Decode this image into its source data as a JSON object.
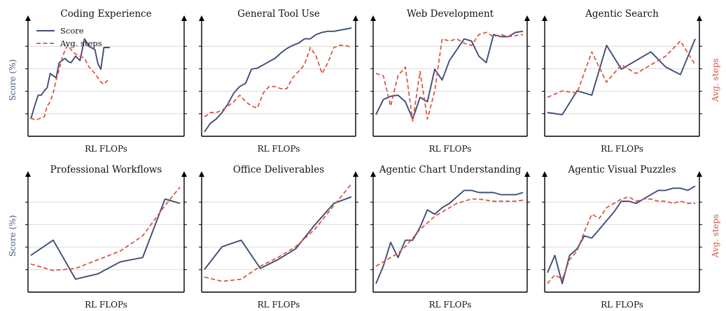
{
  "colors": {
    "score": "#3f4d77",
    "steps": "#d9503f",
    "grid": "#d9d9d9",
    "axis": "#000000"
  },
  "legend": {
    "items": [
      "Score",
      "Avg. steps"
    ],
    "position": "top-left"
  },
  "chart_data": [
    {
      "type": "line",
      "title": "Coding Experience",
      "xlabel": "RL FLOPs",
      "ylabel_left": "Score (%)",
      "ylabel_right": "",
      "ylim": [
        0,
        100
      ],
      "y2lim": [
        0,
        100
      ],
      "grid": "horizontal",
      "series": [
        {
          "name": "Score",
          "style": "solid",
          "axis": "left",
          "x": [
            0,
            0.03,
            0.05,
            0.07,
            0.09,
            0.11,
            0.13,
            0.15,
            0.17,
            0.19,
            0.21,
            0.23,
            0.25,
            0.27,
            0.3,
            0.33,
            0.36,
            0.39,
            0.43,
            0.45,
            0.47,
            0.49,
            0.51,
            0.53
          ],
          "values": [
            14,
            28,
            36,
            36,
            40,
            43,
            56,
            54,
            52,
            66,
            68,
            70,
            67,
            66,
            72,
            68,
            88,
            81,
            78,
            65,
            60,
            80,
            80,
            80
          ]
        },
        {
          "name": "Avg. steps",
          "style": "dashed",
          "axis": "right",
          "x": [
            0,
            0.03,
            0.05,
            0.07,
            0.09,
            0.11,
            0.13,
            0.15,
            0.17,
            0.19,
            0.21,
            0.23,
            0.25,
            0.27,
            0.3,
            0.33,
            0.36,
            0.39,
            0.43,
            0.45,
            0.47,
            0.49,
            0.51,
            0.53
          ],
          "values": [
            15,
            13,
            14,
            15,
            16,
            26,
            30,
            38,
            50,
            60,
            70,
            78,
            82,
            78,
            74,
            72,
            70,
            62,
            56,
            52,
            48,
            46,
            49,
            50
          ]
        }
      ]
    },
    {
      "type": "line",
      "title": "General Tool Use",
      "xlabel": "RL FLOPs",
      "ylabel_left": "",
      "ylabel_right": "",
      "ylim": [
        0,
        100
      ],
      "y2lim": [
        0,
        100
      ],
      "grid": "horizontal",
      "series": [
        {
          "name": "Score",
          "style": "solid",
          "axis": "left",
          "x": [
            0,
            0.04,
            0.08,
            0.12,
            0.16,
            0.2,
            0.24,
            0.28,
            0.32,
            0.36,
            0.4,
            0.44,
            0.48,
            0.52,
            0.56,
            0.6,
            0.64,
            0.68,
            0.72,
            0.76,
            0.8,
            0.84,
            0.88,
            0.92,
            0.96,
            1
          ],
          "values": [
            2,
            10,
            14,
            20,
            28,
            38,
            44,
            47,
            60,
            61,
            64,
            67,
            70,
            75,
            79,
            82,
            84,
            88,
            88,
            92,
            94,
            95,
            95,
            96,
            97,
            98
          ]
        },
        {
          "name": "Avg. steps",
          "style": "dashed",
          "axis": "right",
          "x": [
            0,
            0.04,
            0.08,
            0.12,
            0.16,
            0.2,
            0.24,
            0.28,
            0.32,
            0.36,
            0.4,
            0.44,
            0.48,
            0.52,
            0.56,
            0.6,
            0.64,
            0.68,
            0.72,
            0.76,
            0.8,
            0.84,
            0.88,
            0.92,
            0.96,
            1
          ],
          "values": [
            16,
            20,
            20,
            22,
            26,
            30,
            36,
            30,
            26,
            24,
            38,
            44,
            44,
            42,
            42,
            52,
            58,
            64,
            80,
            72,
            56,
            66,
            80,
            82,
            82,
            80
          ]
        }
      ]
    },
    {
      "type": "line",
      "title": "Web Development",
      "xlabel": "RL FLOPs",
      "ylabel_left": "",
      "ylabel_right": "",
      "ylim": [
        0,
        100
      ],
      "y2lim": [
        0,
        100
      ],
      "grid": "horizontal",
      "series": [
        {
          "name": "Score",
          "style": "solid",
          "axis": "left",
          "x": [
            0,
            0.05,
            0.1,
            0.15,
            0.2,
            0.25,
            0.3,
            0.35,
            0.4,
            0.45,
            0.5,
            0.55,
            0.6,
            0.65,
            0.7,
            0.75,
            0.8,
            0.85,
            0.9,
            0.95,
            1
          ],
          "values": [
            18,
            32,
            35,
            36,
            30,
            14,
            34,
            30,
            60,
            50,
            68,
            78,
            88,
            86,
            72,
            66,
            92,
            90,
            90,
            94,
            95
          ]
        },
        {
          "name": "Avg. steps",
          "style": "dashed",
          "axis": "right",
          "x": [
            0,
            0.05,
            0.1,
            0.15,
            0.2,
            0.25,
            0.3,
            0.35,
            0.4,
            0.45,
            0.5,
            0.55,
            0.6,
            0.65,
            0.7,
            0.75,
            0.8,
            0.85,
            0.9,
            0.95,
            1
          ],
          "values": [
            56,
            54,
            26,
            54,
            62,
            12,
            58,
            14,
            40,
            88,
            86,
            88,
            84,
            82,
            92,
            94,
            90,
            92,
            90,
            91,
            92
          ]
        }
      ]
    },
    {
      "type": "line",
      "title": "Agentic Search",
      "xlabel": "RL FLOPs",
      "ylabel_left": "",
      "ylabel_right": "Avg. steps",
      "ylim": [
        0,
        100
      ],
      "y2lim": [
        0,
        100
      ],
      "grid": "horizontal",
      "series": [
        {
          "name": "Score",
          "style": "solid",
          "axis": "left",
          "x": [
            0,
            0.1,
            0.2,
            0.3,
            0.4,
            0.5,
            0.6,
            0.7,
            0.8,
            0.9,
            1
          ],
          "values": [
            20,
            18,
            40,
            36,
            82,
            60,
            68,
            76,
            62,
            55,
            88
          ]
        },
        {
          "name": "Avg. steps",
          "style": "dashed",
          "axis": "right",
          "x": [
            0,
            0.1,
            0.2,
            0.3,
            0.4,
            0.5,
            0.6,
            0.7,
            0.8,
            0.9,
            1
          ],
          "values": [
            34,
            40,
            38,
            76,
            48,
            64,
            56,
            64,
            72,
            86,
            64
          ]
        }
      ]
    },
    {
      "type": "line",
      "title": "Professional Workflows",
      "xlabel": "RL FLOPs",
      "ylabel_left": "Score (%)",
      "ylabel_right": "",
      "ylim": [
        0,
        100
      ],
      "y2lim": [
        0,
        100
      ],
      "grid": "horizontal",
      "series": [
        {
          "name": "Score",
          "style": "solid",
          "axis": "left",
          "x": [
            0,
            0.15,
            0.3,
            0.45,
            0.6,
            0.75,
            0.9,
            1
          ],
          "values": [
            32,
            46,
            10,
            15,
            26,
            30,
            84,
            80
          ]
        },
        {
          "name": "Avg. steps",
          "style": "dashed",
          "axis": "right",
          "x": [
            0,
            0.15,
            0.3,
            0.45,
            0.6,
            0.75,
            0.9,
            1
          ],
          "values": [
            24,
            18,
            20,
            28,
            36,
            50,
            78,
            95
          ]
        }
      ]
    },
    {
      "type": "line",
      "title": "Office Deliverables",
      "xlabel": "RL FLOPs",
      "ylabel_left": "",
      "ylabel_right": "",
      "ylim": [
        0,
        100
      ],
      "y2lim": [
        0,
        100
      ],
      "grid": "horizontal",
      "series": [
        {
          "name": "Score",
          "style": "solid",
          "axis": "left",
          "x": [
            0,
            0.12,
            0.25,
            0.38,
            0.5,
            0.62,
            0.75,
            0.88,
            1
          ],
          "values": [
            19,
            40,
            46,
            20,
            28,
            38,
            60,
            80,
            86
          ]
        },
        {
          "name": "Avg. steps",
          "style": "dashed",
          "axis": "right",
          "x": [
            0,
            0.12,
            0.25,
            0.38,
            0.5,
            0.62,
            0.75,
            0.88,
            1
          ],
          "values": [
            12,
            8,
            10,
            22,
            30,
            40,
            56,
            78,
            98
          ]
        }
      ]
    },
    {
      "type": "line",
      "title": "Agentic Chart Understanding",
      "xlabel": "RL FLOPs",
      "ylabel_left": "",
      "ylabel_right": "",
      "ylim": [
        0,
        100
      ],
      "y2lim": [
        0,
        100
      ],
      "grid": "horizontal",
      "series": [
        {
          "name": "Score",
          "style": "solid",
          "axis": "left",
          "x": [
            0,
            0.05,
            0.1,
            0.15,
            0.2,
            0.25,
            0.3,
            0.35,
            0.4,
            0.45,
            0.5,
            0.55,
            0.6,
            0.65,
            0.7,
            0.75,
            0.8,
            0.85,
            0.9,
            0.95,
            1
          ],
          "values": [
            6,
            22,
            44,
            30,
            46,
            46,
            58,
            74,
            70,
            76,
            80,
            86,
            92,
            92,
            90,
            90,
            90,
            88,
            88,
            88,
            90
          ]
        },
        {
          "name": "Avg. steps",
          "style": "dashed",
          "axis": "right",
          "x": [
            0,
            0.05,
            0.1,
            0.15,
            0.2,
            0.25,
            0.3,
            0.35,
            0.4,
            0.45,
            0.5,
            0.55,
            0.6,
            0.65,
            0.7,
            0.75,
            0.8,
            0.85,
            0.9,
            0.95,
            1
          ],
          "values": [
            22,
            26,
            30,
            34,
            40,
            48,
            56,
            62,
            68,
            72,
            76,
            80,
            82,
            84,
            84,
            83,
            82,
            82,
            82,
            82,
            83
          ]
        }
      ]
    },
    {
      "type": "line",
      "title": "Agentic Visual Puzzles",
      "xlabel": "RL FLOPs",
      "ylabel_left": "",
      "ylabel_right": "Avg. steps",
      "ylim": [
        0,
        100
      ],
      "y2lim": [
        0,
        100
      ],
      "grid": "horizontal",
      "series": [
        {
          "name": "Score",
          "style": "solid",
          "axis": "left",
          "x": [
            0,
            0.05,
            0.1,
            0.15,
            0.2,
            0.25,
            0.3,
            0.35,
            0.4,
            0.45,
            0.5,
            0.55,
            0.6,
            0.65,
            0.7,
            0.75,
            0.8,
            0.85,
            0.9,
            0.95,
            1
          ],
          "values": [
            16,
            32,
            6,
            32,
            38,
            50,
            48,
            56,
            64,
            72,
            82,
            82,
            80,
            84,
            88,
            92,
            92,
            94,
            94,
            92,
            96
          ]
        },
        {
          "name": "Avg. steps",
          "style": "dashed",
          "axis": "right",
          "x": [
            0,
            0.05,
            0.1,
            0.15,
            0.2,
            0.25,
            0.3,
            0.35,
            0.4,
            0.45,
            0.5,
            0.55,
            0.6,
            0.65,
            0.7,
            0.75,
            0.8,
            0.85,
            0.9,
            0.95,
            1
          ],
          "values": [
            6,
            14,
            10,
            28,
            36,
            54,
            70,
            66,
            76,
            80,
            84,
            86,
            82,
            84,
            84,
            82,
            82,
            80,
            82,
            80,
            80
          ]
        }
      ]
    }
  ]
}
